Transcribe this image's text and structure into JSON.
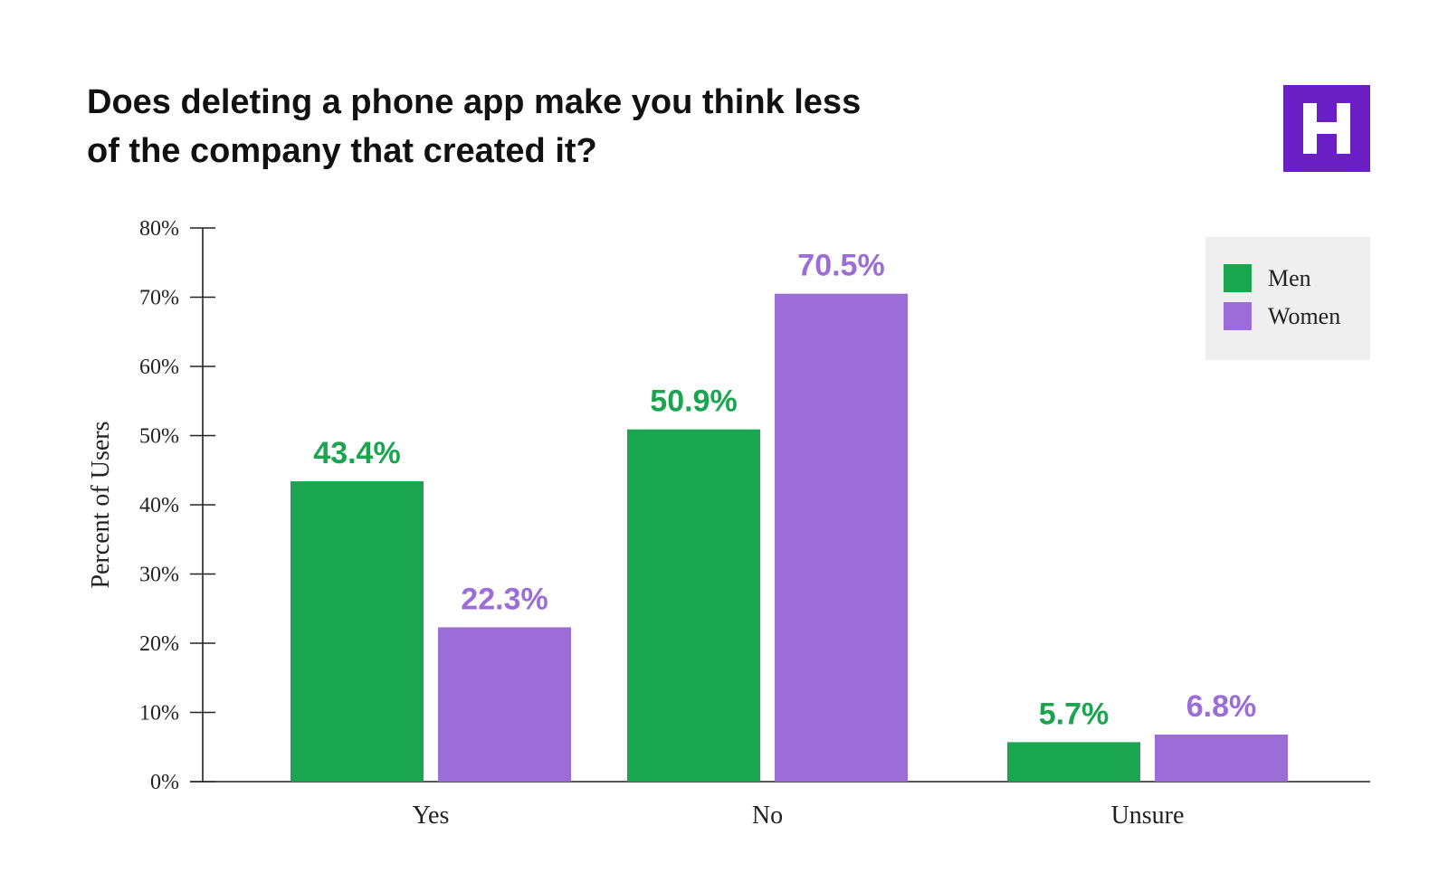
{
  "brand": {
    "logo_letter": "H",
    "logo_color": "#6a1fc4"
  },
  "title_lines": [
    "Does deleting a phone app make you think less",
    "of the company that created it?"
  ],
  "colors": {
    "men": "#1aa550",
    "women": "#9c6dd7",
    "axis": "#222222"
  },
  "chart_data": {
    "type": "bar",
    "title": "Does deleting a phone app make you think less of the company that created it?",
    "xlabel": "",
    "ylabel": "Percent of Users",
    "ylim": [
      0,
      80
    ],
    "ytick_values": [
      0,
      10,
      20,
      30,
      40,
      50,
      60,
      70,
      80
    ],
    "ytick_labels": [
      "0%",
      "10%",
      "20%",
      "30%",
      "40%",
      "50%",
      "60%",
      "70%",
      "80%"
    ],
    "categories": [
      "Yes",
      "No",
      "Unsure"
    ],
    "series": [
      {
        "name": "Men",
        "values": [
          43.4,
          50.9,
          5.7
        ],
        "labels": [
          "43.4%",
          "50.9%",
          "5.7%"
        ],
        "color": "#1aa550"
      },
      {
        "name": "Women",
        "values": [
          22.3,
          70.5,
          6.8
        ],
        "labels": [
          "22.3%",
          "70.5%",
          "6.8%"
        ],
        "color": "#9c6dd7"
      }
    ],
    "legend_position": "top-right",
    "grid": false
  }
}
